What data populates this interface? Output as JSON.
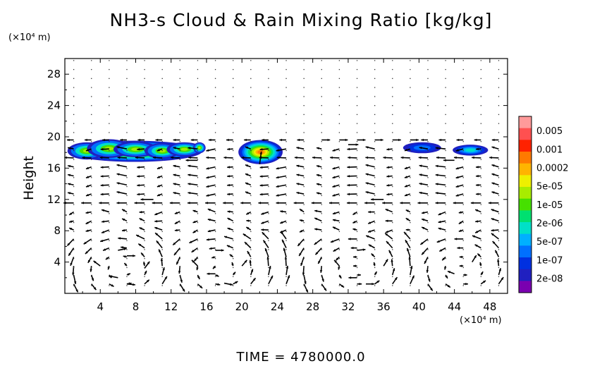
{
  "title": "NH3-s Cloud & Rain Mixing Ratio [kg/kg]",
  "y_unit": "(×10⁴ m)",
  "x_unit": "(×10⁴ m)",
  "time_label": "TIME  =  4780000.0",
  "chart_data": {
    "type": "heatmap",
    "title": "NH3-s Cloud & Rain Mixing Ratio [kg/kg]",
    "xlabel": "",
    "ylabel": "Height",
    "xlim": [
      0,
      50
    ],
    "ylim": [
      0,
      30
    ],
    "xticks": [
      4,
      8,
      12,
      16,
      20,
      24,
      28,
      32,
      36,
      40,
      44,
      48
    ],
    "yticks": [
      4,
      8,
      12,
      16,
      20,
      24,
      28
    ],
    "overlay": "wind vectors",
    "colorbar": {
      "labels": [
        "0.005",
        "0.001",
        "0.0002",
        "5e-05",
        "1e-05",
        "2e-06",
        "5e-07",
        "1e-07",
        "2e-08"
      ],
      "colors": [
        "#ff9a9a",
        "#ff5050",
        "#ff2200",
        "#ff7a00",
        "#ffb400",
        "#eef000",
        "#a8ec00",
        "#46e000",
        "#00e070",
        "#00e0c8",
        "#00b0ff",
        "#0070ff",
        "#0030e0",
        "#2020c0",
        "#7a00b0"
      ]
    },
    "cloud_regions": [
      {
        "x_range": [
          0.3,
          15.5
        ],
        "y_range": [
          16.8,
          19.5
        ],
        "max_level": "0.0002"
      },
      {
        "x_range": [
          19.6,
          24.6
        ],
        "y_range": [
          16.5,
          19.6
        ],
        "max_level": "0.0002"
      },
      {
        "x_range": [
          38.2,
          42.5
        ],
        "y_range": [
          17.9,
          19.3
        ],
        "max_level": "1e-07"
      },
      {
        "x_range": [
          43.8,
          47.8
        ],
        "y_range": [
          17.6,
          19.0
        ],
        "max_level": "2e-06"
      }
    ],
    "wind_vectors": [
      {
        "x": 6,
        "y": 2,
        "u": -1,
        "v": 0.2
      },
      {
        "x": 7,
        "y": 1.2,
        "u": 1,
        "v": -0.1
      },
      {
        "x": 4,
        "y": 3.5,
        "u": -0.8,
        "v": 0.6
      },
      {
        "x": 9,
        "y": 3.2,
        "u": 0.6,
        "v": 0.8
      },
      {
        "x": 6,
        "y": 5.5,
        "u": 1,
        "v": 0.2
      },
      {
        "x": 7,
        "y": 4.8,
        "u": 1,
        "v": 0
      },
      {
        "x": 17,
        "y": 2.5,
        "u": -1,
        "v": 0
      },
      {
        "x": 18,
        "y": 1.3,
        "u": 1,
        "v": -0.2
      },
      {
        "x": 15,
        "y": 3.5,
        "u": -0.7,
        "v": 0.7
      },
      {
        "x": 20,
        "y": 3.5,
        "u": 0.6,
        "v": 0.7
      },
      {
        "x": 17,
        "y": 5.5,
        "u": 1,
        "v": 0
      },
      {
        "x": 33,
        "y": 2,
        "u": -1,
        "v": 0
      },
      {
        "x": 34,
        "y": 1.2,
        "u": 1,
        "v": 0
      },
      {
        "x": 31,
        "y": 3.5,
        "u": -0.6,
        "v": 0.7
      },
      {
        "x": 36,
        "y": 3.5,
        "u": 0.5,
        "v": 0.8
      },
      {
        "x": 33,
        "y": 5.5,
        "u": 1,
        "v": 0.1
      },
      {
        "x": 44,
        "y": 2.5,
        "u": -0.8,
        "v": 0.3
      },
      {
        "x": 46,
        "y": 4,
        "u": 0.5,
        "v": 0.8
      },
      {
        "x": 22,
        "y": 16.5,
        "u": 0.2,
        "v": 1.5
      },
      {
        "x": 10,
        "y": 12,
        "u": -1.5,
        "v": 0
      },
      {
        "x": 36,
        "y": 12,
        "u": -1.5,
        "v": 0
      },
      {
        "x": 15,
        "y": 17,
        "u": -1.4,
        "v": 0
      },
      {
        "x": 32,
        "y": 19,
        "u": 1.2,
        "v": 0
      },
      {
        "x": 44,
        "y": 17,
        "u": -1.3,
        "v": 0
      }
    ]
  }
}
